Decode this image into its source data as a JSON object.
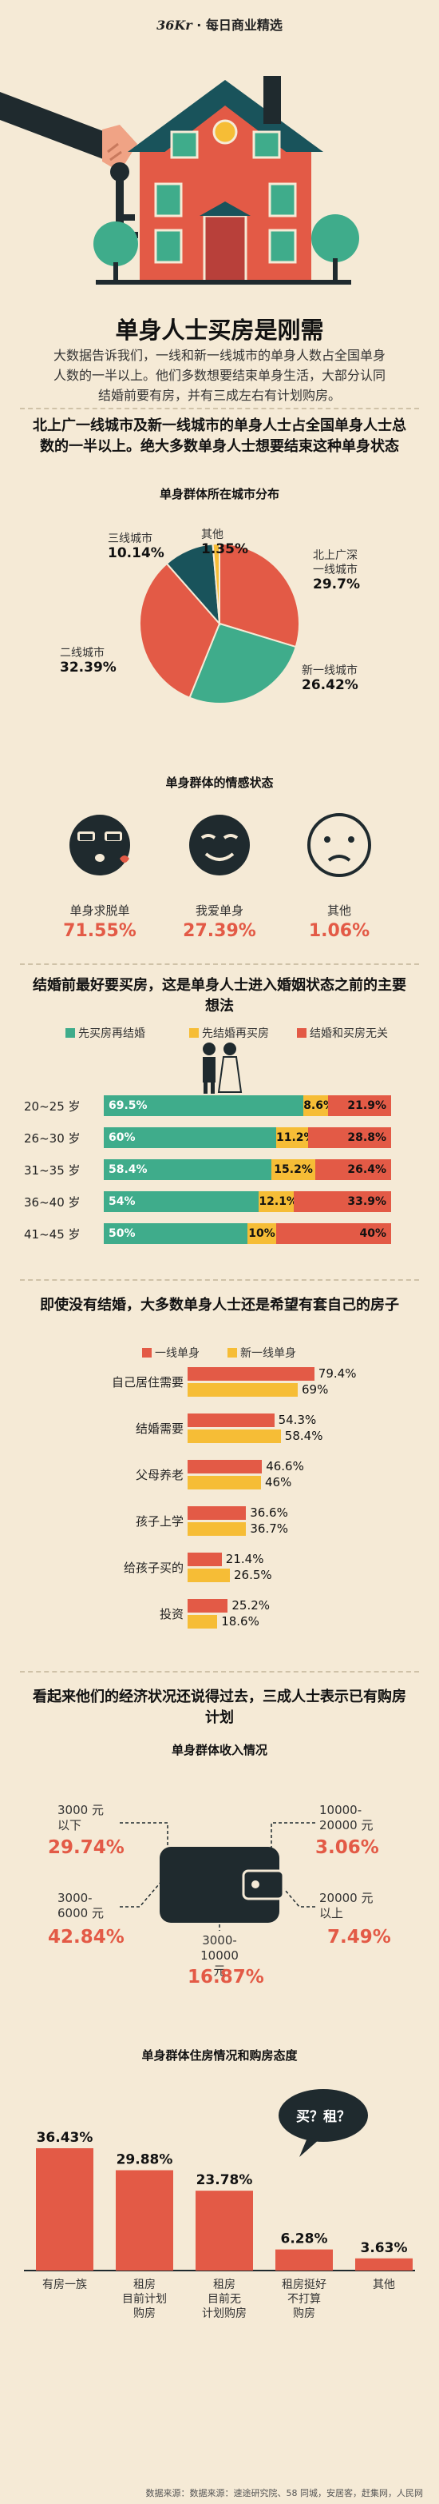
{
  "header": {
    "brand_prefix": "36Kr",
    "brand_suffix": " · 每日商业精选"
  },
  "title": "单身人士买房是刚需",
  "intro": "大数据告诉我们，一线和新一线城市的单身人数占全国单身人数的一半以上。他们多数想要结束单身生活，大部分认同结婚前要有房，并有三成左右有计划购房。",
  "section1": {
    "heading": "北上广一线城市及新一线城市的单身人士占全国单身人士总数的一半以上。绝大多数单身人士想要结束这种单身状态"
  },
  "section2": {
    "heading": "结婚前最好要买房，这是单身人士进入婚姻状态之前的主要想法"
  },
  "section3": {
    "heading": "即使没有结婚，大多数单身人士还是希望有套自己的房子"
  },
  "section4": {
    "heading": "看起来他们的经济状况还说得过去，三成人士表示已有购房计划"
  },
  "source": "数据来源：数据来源：速途研究院、58 同城，安居客，赶集网，人民网",
  "colors": {
    "red": "#e35a46",
    "green": "#3fac8b",
    "yellow": "#f6bd36",
    "teal": "#19535b"
  },
  "chart_data": [
    {
      "type": "pie",
      "title": "单身群体所在城市分布",
      "slices": [
        {
          "label": "北上广深一线城市",
          "value": 29.7,
          "display": "29.7%",
          "color": "#e35a46"
        },
        {
          "label": "新一线城市",
          "value": 26.42,
          "display": "26.42%",
          "color": "#3fac8b"
        },
        {
          "label": "二线城市",
          "value": 32.39,
          "display": "32.39%",
          "color": "#e35a46"
        },
        {
          "label": "三线城市",
          "value": 10.14,
          "display": "10.14%",
          "color": "#19535b"
        },
        {
          "label": "其他",
          "value": 1.35,
          "display": "1.35%",
          "color": "#f6bd36"
        }
      ]
    },
    {
      "type": "table",
      "title": "单身群体的情感状态",
      "items": [
        {
          "label": "单身求脱单",
          "value": "71.55%",
          "icon": "kiss-face-icon"
        },
        {
          "label": "我爱单身",
          "value": "27.39%",
          "icon": "smirk-face-icon"
        },
        {
          "label": "其他",
          "value": "1.06%",
          "icon": "worried-face-icon"
        }
      ]
    },
    {
      "type": "bar",
      "stacked": true,
      "legend": [
        "先买房再结婚",
        "先结婚再买房",
        "结婚和买房无关"
      ],
      "colors": [
        "#3fac8b",
        "#f6bd36",
        "#e35a46"
      ],
      "categories": [
        "20~25 岁",
        "26~30 岁",
        "31~35 岁",
        "36~40 岁",
        "41~45 岁"
      ],
      "series": [
        {
          "name": "先买房再结婚",
          "values": [
            69.5,
            60,
            58.4,
            54,
            50
          ],
          "labels": [
            "69.5%",
            "60%",
            "58.4%",
            "54%",
            "50%"
          ]
        },
        {
          "name": "先结婚再买房",
          "values": [
            8.6,
            11.2,
            15.2,
            12.1,
            10
          ],
          "labels": [
            "8.6%",
            "11.2%",
            "15.2%",
            "12.1%",
            "10%"
          ]
        },
        {
          "name": "结婚和买房无关",
          "values": [
            21.9,
            28.8,
            26.4,
            33.9,
            40
          ],
          "labels": [
            "21.9%",
            "28.8%",
            "26.4%",
            "33.9%",
            "40%"
          ]
        }
      ]
    },
    {
      "type": "bar",
      "orientation": "horizontal",
      "legend": [
        "一线单身",
        "新一线单身"
      ],
      "colors": [
        "#e35a46",
        "#f6bd36"
      ],
      "categories": [
        "自己居住需要",
        "结婚需要",
        "父母养老",
        "孩子上学",
        "给孩子买的",
        "投资"
      ],
      "icons": [
        "bed-icon",
        "rings-icon",
        "parents-icon",
        "school-child-icon",
        "family-icon",
        "piggy-bank-icon"
      ],
      "series": [
        {
          "name": "一线单身",
          "values": [
            79.4,
            54.3,
            46.6,
            36.6,
            21.4,
            25.2
          ],
          "labels": [
            "79.4%",
            "54.3%",
            "46.6%",
            "36.6%",
            "21.4%",
            "25.2%"
          ]
        },
        {
          "name": "新一线单身",
          "values": [
            69,
            58.4,
            46,
            36.7,
            26.5,
            18.6
          ],
          "labels": [
            "69%",
            "58.4%",
            "46%",
            "36.7%",
            "26.5%",
            "18.6%"
          ]
        }
      ]
    },
    {
      "type": "table",
      "title": "单身群体收入情况",
      "items": [
        {
          "label": "3000 元以下",
          "value": "29.74%"
        },
        {
          "label": "3000-6000 元",
          "value": "42.84%"
        },
        {
          "label": "3000-10000 元",
          "value": "16.87%"
        },
        {
          "label": "10000-20000 元",
          "value": "3.06%"
        },
        {
          "label": "20000 元以上",
          "value": "7.49%"
        }
      ]
    },
    {
      "type": "bar",
      "title": "单身群体住房情况和购房态度",
      "categories": [
        "有房一族",
        "租房目前计划购房",
        "租房目前无计划购房",
        "租房挺好不打算购房",
        "其他"
      ],
      "values": [
        36.43,
        29.88,
        23.78,
        6.28,
        3.63
      ],
      "labels": [
        "36.43%",
        "29.88%",
        "23.78%",
        "6.28%",
        "3.63%"
      ],
      "annotation": "买？租？"
    }
  ],
  "pie_labels": [
    {
      "l1": "北上广深",
      "l2": "一线城市",
      "v": "29.7%"
    },
    {
      "l1": "新一线城市",
      "l2": "",
      "v": "26.42%"
    },
    {
      "l1": "二线城市",
      "l2": "",
      "v": "32.39%"
    },
    {
      "l1": "三线城市",
      "l2": "",
      "v": "10.14%"
    },
    {
      "l1": "其他",
      "l2": "",
      "v": "1.35%"
    }
  ],
  "income_labels": {
    "a1": "3000 元",
    "a2": "以下",
    "b1": "3000-",
    "b2": "6000 元",
    "c1": "3000-",
    "c2": "10000 元",
    "d1": "10000-",
    "d2": "20000 元",
    "e1": "20000 元",
    "e2": "以上"
  },
  "vbar_labels": [
    [
      "有房一族"
    ],
    [
      "租房",
      "目前计划",
      "购房"
    ],
    [
      "租房",
      "目前无",
      "计划购房"
    ],
    [
      "租房挺好",
      "不打算",
      "购房"
    ],
    [
      "其他"
    ]
  ]
}
